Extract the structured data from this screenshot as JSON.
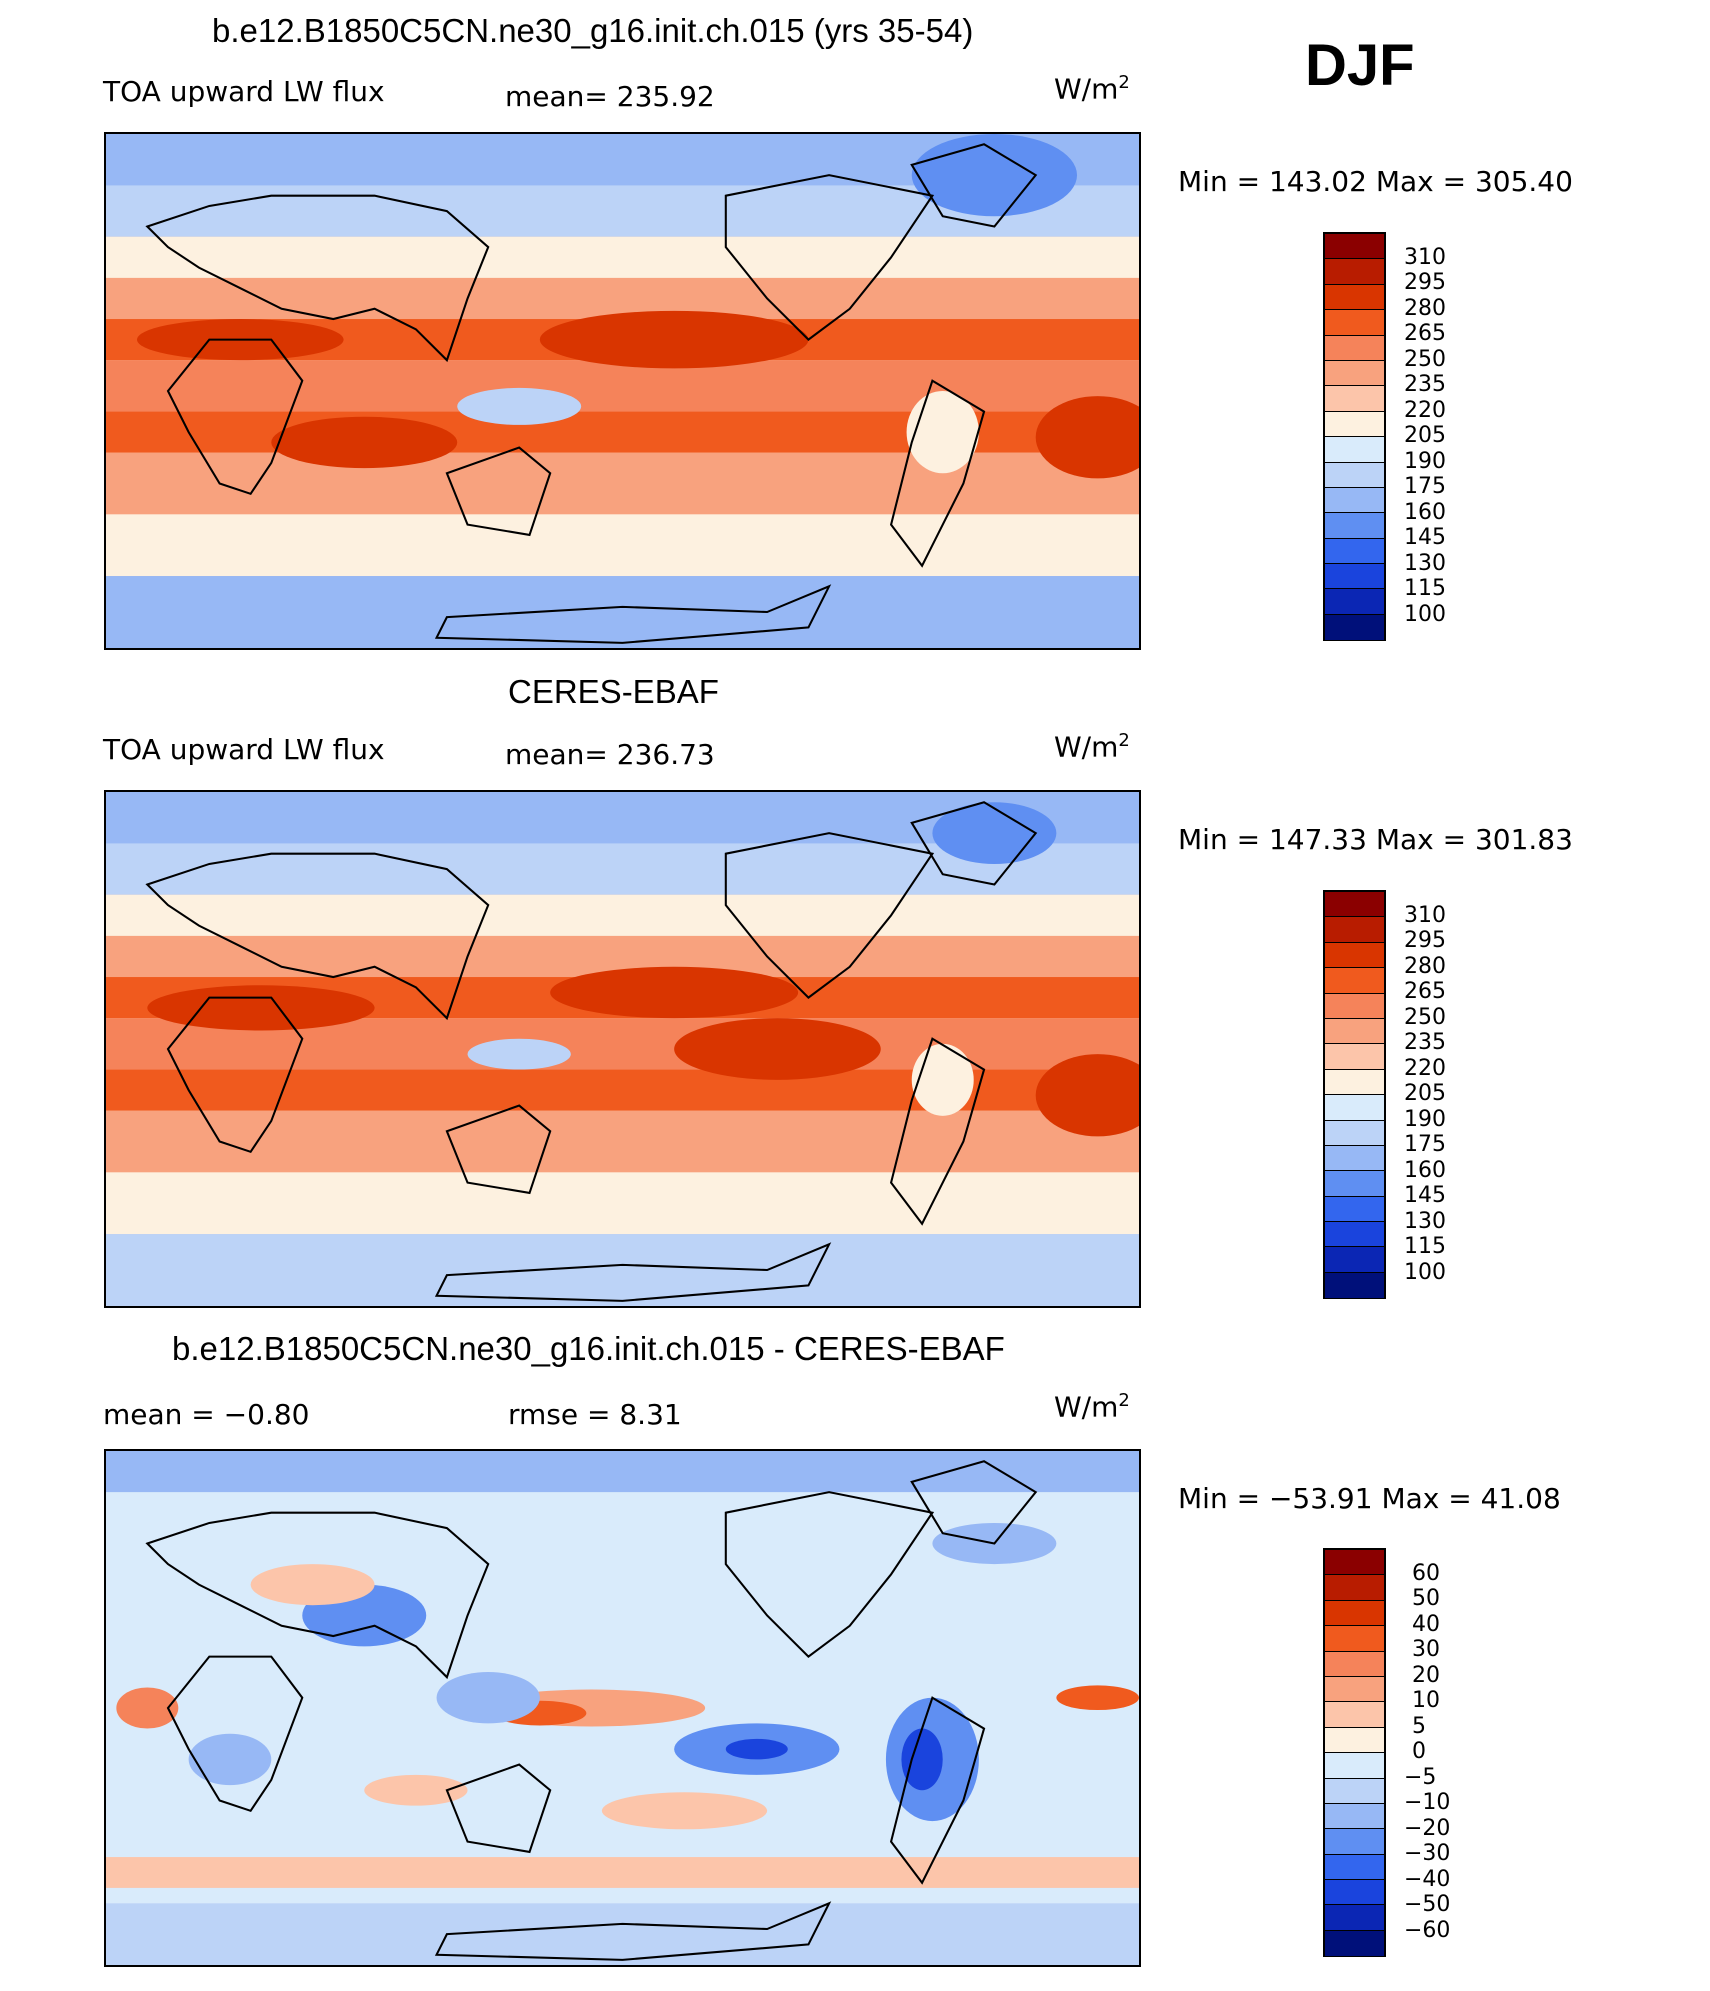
{
  "season": "DJF",
  "panels": [
    {
      "title": "b.e12.B1850C5CN.ne30_g16.init.ch.015 (yrs 35-54)",
      "left_label": "TOA upward LW flux",
      "center_label": "mean=  235.92",
      "units": "W/m",
      "units_exp": "2",
      "minmax": "Min  =  143.02  Max  =  305.40",
      "colorbar_labels": [
        "310",
        "295",
        "280",
        "265",
        "250",
        "235",
        "220",
        "205",
        "190",
        "175",
        "160",
        "145",
        "130",
        "115",
        "100"
      ]
    },
    {
      "title": "CERES-EBAF",
      "left_label": "TOA upward LW flux",
      "center_label": "mean=  236.73",
      "units": "W/m",
      "units_exp": "2",
      "minmax": "Min  =  147.33  Max  =  301.83",
      "colorbar_labels": [
        "310",
        "295",
        "280",
        "265",
        "250",
        "235",
        "220",
        "205",
        "190",
        "175",
        "160",
        "145",
        "130",
        "115",
        "100"
      ]
    },
    {
      "title": "b.e12.B1850C5CN.ne30_g16.init.ch.015 - CERES-EBAF",
      "left_label": "mean  =    −0.80",
      "center_label": "rmse  =     8.31",
      "units": "W/m",
      "units_exp": "2",
      "minmax": "Min  =  −53.91  Max  =    41.08",
      "colorbar_labels": [
        "60",
        "50",
        "40",
        "30",
        "20",
        "10",
        "5",
        "0",
        "−5",
        "−10",
        "−20",
        "−30",
        "−40",
        "−50",
        "−60"
      ]
    }
  ],
  "colorbar_colors": [
    "#8b0000",
    "#b81c00",
    "#d93500",
    "#f05a1e",
    "#f5835a",
    "#f8a27e",
    "#fcc5aa",
    "#fdf1e0",
    "#d9ebfb",
    "#bcd3f7",
    "#97b8f5",
    "#5f8ff2",
    "#3366ee",
    "#1a44dd",
    "#0b26b4",
    "#00107a"
  ]
}
